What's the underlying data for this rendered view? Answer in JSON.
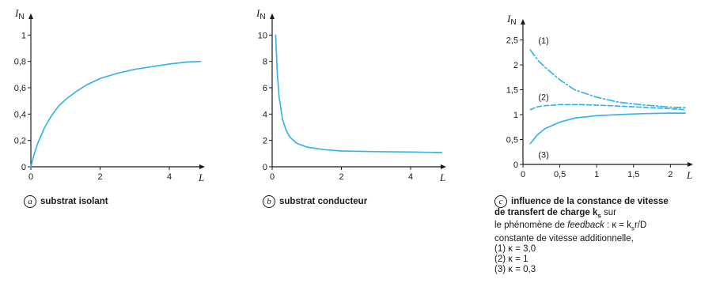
{
  "chart_data": [
    {
      "type": "line",
      "ylabel": "I",
      "ylabel_sub": "N",
      "xlabel": "L",
      "xlim": [
        0,
        4.8
      ],
      "ylim": [
        0,
        1.08
      ],
      "xticks": [
        0,
        2,
        4
      ],
      "xtick_labels": [
        "0",
        "2",
        "4"
      ],
      "yticks": [
        0,
        0.2,
        0.4,
        0.6,
        0.8,
        1
      ],
      "ytick_labels": [
        "0",
        "0,2",
        "0,4",
        "0,6",
        "0,8",
        "1"
      ],
      "series": [
        {
          "x": [
            0,
            0.1,
            0.2,
            0.4,
            0.6,
            0.8,
            1.0,
            1.3,
            1.6,
            2.0,
            2.5,
            3.0,
            3.5,
            4.0,
            4.5,
            4.9
          ],
          "y": [
            0,
            0.1,
            0.18,
            0.3,
            0.39,
            0.46,
            0.51,
            0.57,
            0.62,
            0.67,
            0.71,
            0.74,
            0.76,
            0.78,
            0.795,
            0.8
          ],
          "color": "#3ab3e6",
          "style": "solid"
        }
      ],
      "caption_letter": "a",
      "caption": "substrat isolant"
    },
    {
      "type": "line",
      "ylabel": "I",
      "ylabel_sub": "N",
      "xlabel": "L",
      "xlim": [
        0,
        4.8
      ],
      "ylim": [
        0,
        10.8
      ],
      "xticks": [
        0,
        2,
        4
      ],
      "xtick_labels": [
        "0",
        "2",
        "4"
      ],
      "yticks": [
        0,
        2,
        4,
        6,
        8,
        10
      ],
      "ytick_labels": [
        "0",
        "2",
        "4",
        "6",
        "8",
        "10"
      ],
      "series": [
        {
          "x": [
            0.1,
            0.15,
            0.2,
            0.3,
            0.4,
            0.5,
            0.7,
            1.0,
            1.5,
            2.0,
            3.0,
            4.0,
            4.5,
            4.9
          ],
          "y": [
            10,
            7.0,
            5.3,
            3.6,
            2.8,
            2.3,
            1.8,
            1.5,
            1.3,
            1.2,
            1.15,
            1.12,
            1.1,
            1.08
          ],
          "color": "#3ab3e6",
          "style": "solid"
        }
      ],
      "caption_letter": "b",
      "caption": "substrat conducteur"
    },
    {
      "type": "line",
      "ylabel": "I",
      "ylabel_sub": "N",
      "xlabel": "L",
      "xlim": [
        0,
        2.2
      ],
      "ylim": [
        0,
        2.7
      ],
      "xticks": [
        0,
        0.5,
        1,
        1.5,
        2
      ],
      "xtick_labels": [
        "0",
        "0,5",
        "1",
        "1,5",
        "2"
      ],
      "yticks": [
        0,
        0.5,
        1,
        1.5,
        2,
        2.5
      ],
      "ytick_labels": [
        "0",
        "0,5",
        "1",
        "1,5",
        "2",
        "2,5"
      ],
      "series": [
        {
          "name": "(1)",
          "x": [
            0.1,
            0.2,
            0.3,
            0.5,
            0.7,
            1.0,
            1.3,
            1.6,
            2.0,
            2.2
          ],
          "y": [
            2.3,
            2.1,
            1.95,
            1.7,
            1.5,
            1.35,
            1.25,
            1.2,
            1.15,
            1.14
          ],
          "color": "#3ab3e6",
          "style": "dashdot"
        },
        {
          "name": "(2)",
          "x": [
            0.1,
            0.2,
            0.3,
            0.5,
            0.8,
            1.2,
            1.6,
            2.0,
            2.2
          ],
          "y": [
            1.1,
            1.16,
            1.18,
            1.2,
            1.2,
            1.18,
            1.15,
            1.12,
            1.1
          ],
          "color": "#3ab3e6",
          "style": "dashed"
        },
        {
          "name": "(3)",
          "x": [
            0.1,
            0.2,
            0.3,
            0.5,
            0.7,
            1.0,
            1.3,
            1.6,
            2.0,
            2.2
          ],
          "y": [
            0.42,
            0.6,
            0.72,
            0.85,
            0.93,
            0.98,
            1.0,
            1.02,
            1.03,
            1.03
          ],
          "color": "#3ab3e6",
          "style": "solid"
        }
      ],
      "caption_letter": "c",
      "caption_lines": [
        "influence de la constance de vitesse",
        "de transfert de charge k",
        "le phénomène de feedback : κ = k",
        "constante de vitesse additionnelle,",
        "(1) κ = 3,0",
        "(2) κ = 1",
        "(3) κ = 0,3"
      ],
      "caption_parts": {
        "line2_sub": "s",
        "line2_tail": " sur",
        "line3_italic": "feedback",
        "line3_pre": "le phénomène de ",
        "line3_mid": " : κ = k",
        "line3_sub": "s",
        "line3_tail": "r/D"
      }
    }
  ]
}
